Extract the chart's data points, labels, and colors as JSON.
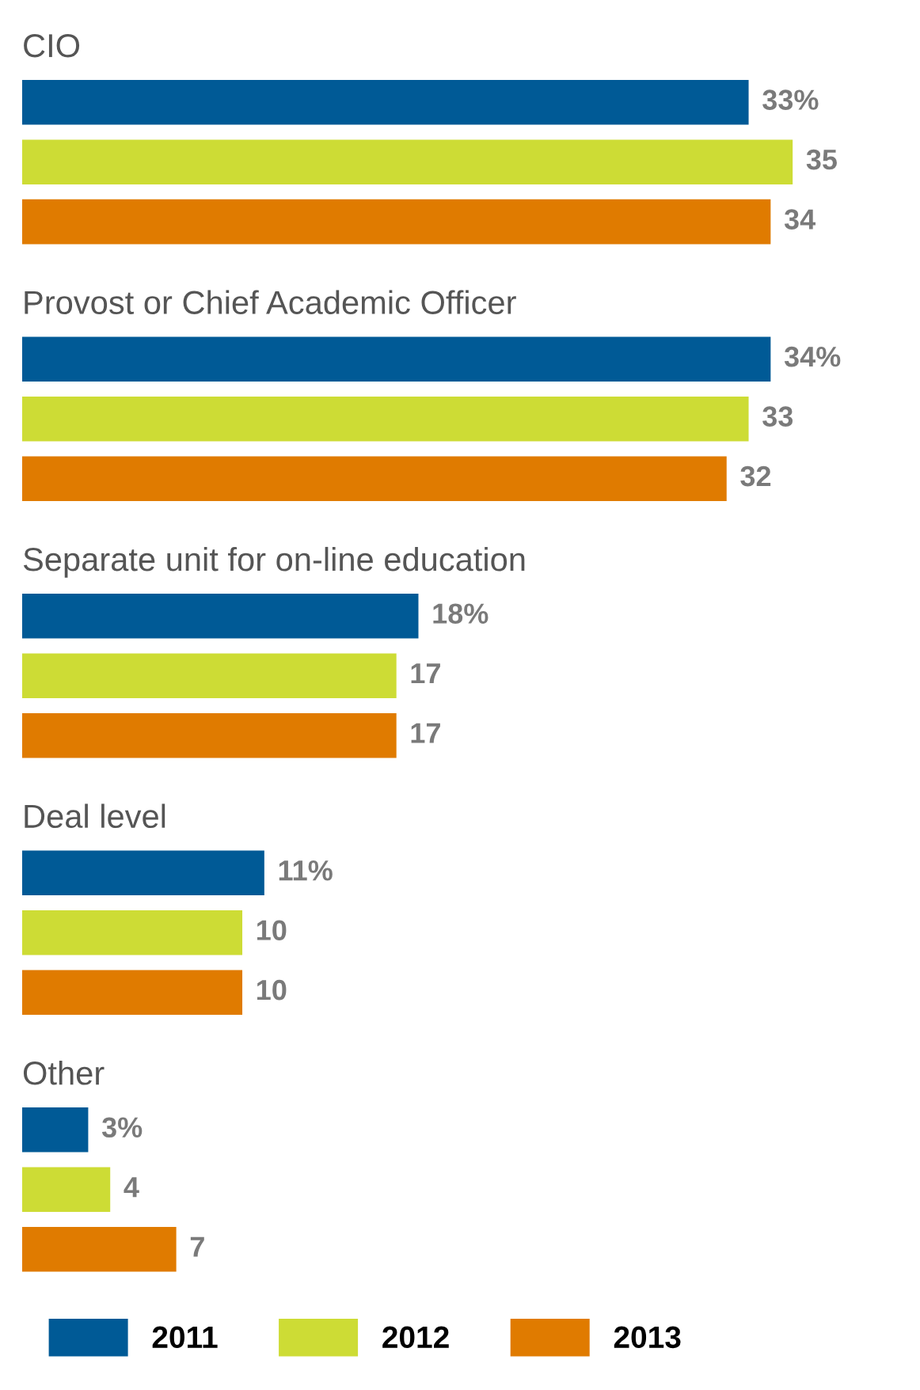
{
  "chart_data": {
    "type": "bar",
    "orientation": "horizontal",
    "categories": [
      "CIO",
      "Provost or Chief Academic Officer",
      "Separate unit for on-line education",
      "Deal level",
      "Other"
    ],
    "series": [
      {
        "name": "2011",
        "color": "#005a96",
        "values": [
          33,
          34,
          18,
          11,
          3
        ],
        "value_labels": [
          "33%",
          "34%",
          "18%",
          "11%",
          "3%"
        ]
      },
      {
        "name": "2012",
        "color": "#cddc35",
        "values": [
          35,
          33,
          17,
          10,
          4
        ],
        "value_labels": [
          "35",
          "33",
          "17",
          "10",
          "4"
        ]
      },
      {
        "name": "2013",
        "color": "#e07b00",
        "values": [
          34,
          32,
          17,
          10,
          7
        ],
        "value_labels": [
          "34",
          "32",
          "17",
          "10",
          "7"
        ]
      }
    ],
    "legend": "bottom left"
  }
}
